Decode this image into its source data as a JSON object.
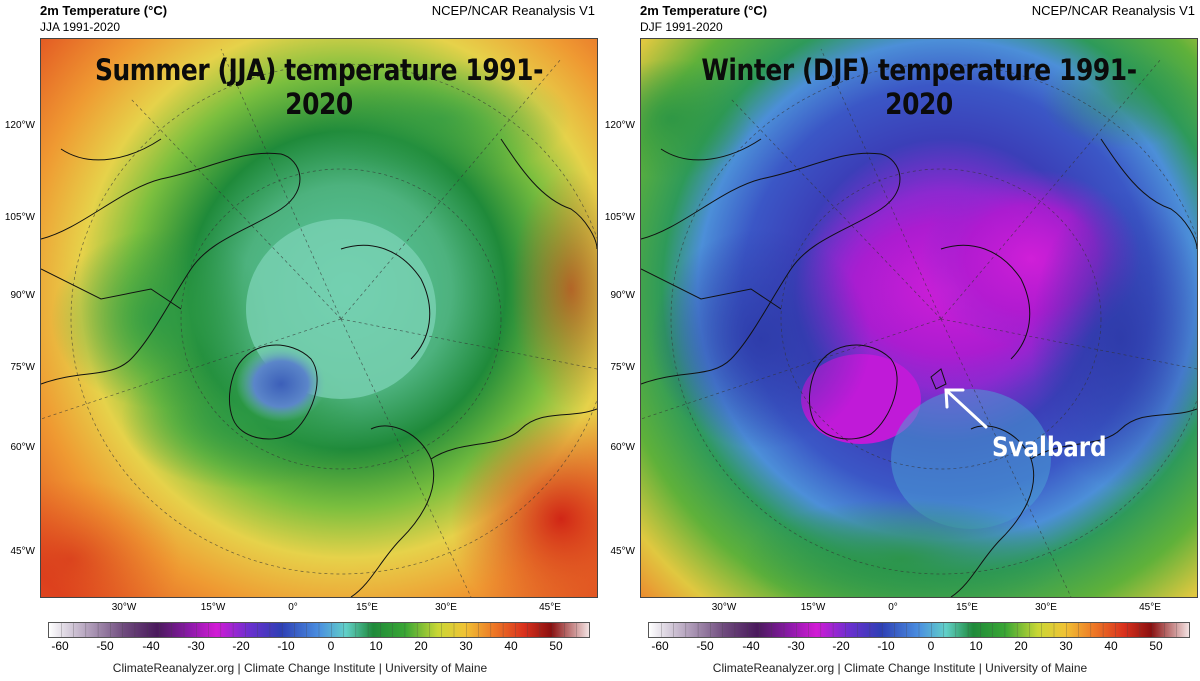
{
  "left": {
    "header_title": "2m Temperature (°C)",
    "header_subtitle": "JJA 1991-2020",
    "source": "NCEP/NCAR Reanalysis V1",
    "overlay_title": "Summer (JJA) temperature 1991-2020"
  },
  "right": {
    "header_title": "2m Temperature (°C)",
    "header_subtitle": "DJF 1991-2020",
    "source": "NCEP/NCAR Reanalysis V1",
    "overlay_title": "Winter (DJF) temperature 1991-2020",
    "annotation": "Svalbard"
  },
  "lat_labels": [
    "120°W",
    "105°W",
    "90°W",
    "75°W",
    "60°W",
    "45°W"
  ],
  "lon_labels": [
    "30°W",
    "15°W",
    "0°",
    "15°E",
    "30°E",
    "45°E"
  ],
  "colorbar_ticks": [
    "-60",
    "-50",
    "-40",
    "-30",
    "-20",
    "-10",
    "0",
    "10",
    "20",
    "30",
    "40",
    "50"
  ],
  "footer": "ClimateReanalyzer.org | Climate Change Institute | University of Maine",
  "colors": {
    "purple": "#b01ad8",
    "blue": "#3b4fc2",
    "teal": "#5bc8a4",
    "green": "#1f8a3a",
    "yellow": "#e7d24a",
    "orange": "#ef7a2a",
    "red": "#d6301c"
  }
}
